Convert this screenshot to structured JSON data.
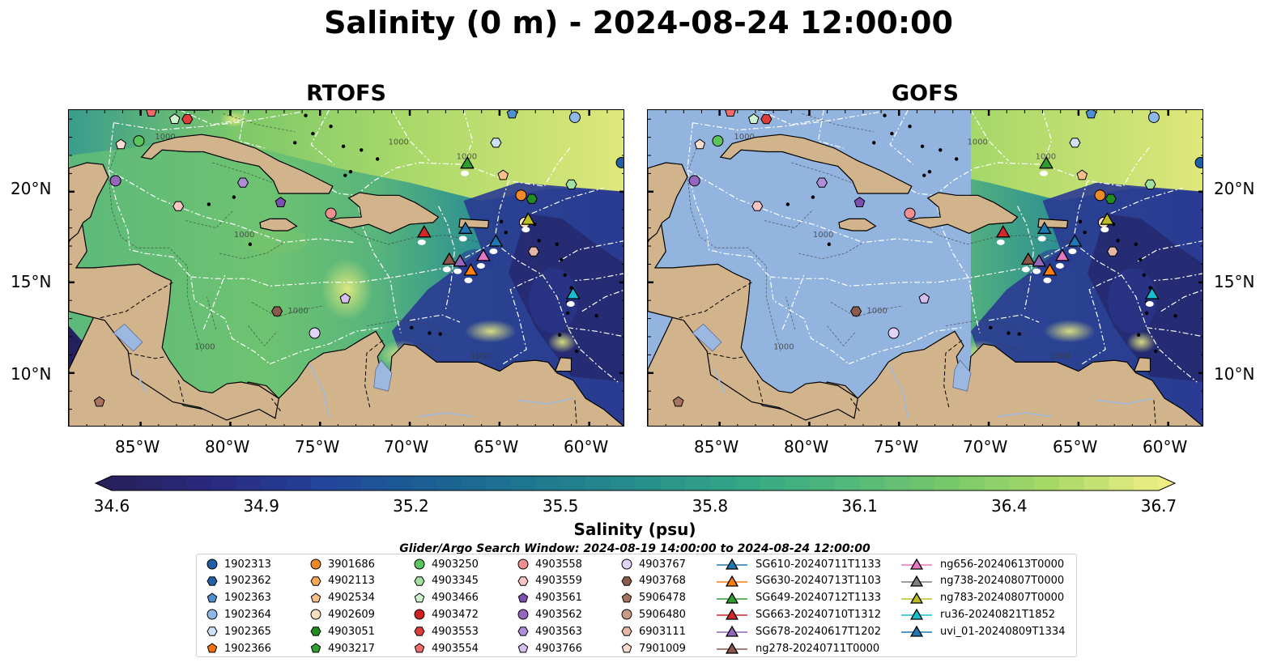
{
  "title": "Salinity (0 m) - 2024-08-24 12:00:00",
  "panels": [
    {
      "id": "rtofs",
      "title": "RTOFS"
    },
    {
      "id": "gofs",
      "title": "GOFS"
    }
  ],
  "axes": {
    "lon_labels": [
      "85°W",
      "80°W",
      "75°W",
      "70°W",
      "65°W",
      "60°W"
    ],
    "lat_labels": [
      "20°N",
      "15°N",
      "10°N"
    ],
    "lon_range": [
      -89,
      -58
    ],
    "lat_range": [
      7,
      24.5
    ]
  },
  "colorbar": {
    "label": "Salinity (psu)",
    "ticks": [
      "34.6",
      "34.9",
      "35.2",
      "35.5",
      "35.8",
      "36.1",
      "36.4",
      "36.7"
    ],
    "vmin": 34.6,
    "vmax": 36.7,
    "extend": "both",
    "colors": [
      "#27205a",
      "#2a2a80",
      "#23449a",
      "#1a5f93",
      "#1e7790",
      "#278d8b",
      "#33a686",
      "#51b87b",
      "#78c86a",
      "#a9d967",
      "#eeed84"
    ]
  },
  "search_window": "Glider/Argo Search Window: 2024-08-19 14:00:00 to 2024-08-24 12:00:00",
  "legend": [
    {
      "label": "1902313",
      "marker": "circle",
      "color": "#1f5fa8"
    },
    {
      "label": "1902362",
      "marker": "hexagon",
      "color": "#1f5fa8"
    },
    {
      "label": "1902363",
      "marker": "pentagon",
      "color": "#4f8fd0"
    },
    {
      "label": "1902364",
      "marker": "circle",
      "color": "#8fb8e8"
    },
    {
      "label": "1902365",
      "marker": "hexagon",
      "color": "#cfe1f5"
    },
    {
      "label": "1902366",
      "marker": "pentagon",
      "color": "#f07010"
    },
    {
      "label": "3901686",
      "marker": "circle",
      "color": "#f08a28"
    },
    {
      "label": "4902113",
      "marker": "hexagon",
      "color": "#f7a65a"
    },
    {
      "label": "4902534",
      "marker": "pentagon",
      "color": "#f7c08a"
    },
    {
      "label": "4902609",
      "marker": "circle",
      "color": "#fbe0c0"
    },
    {
      "label": "4903051",
      "marker": "hexagon",
      "color": "#228b22"
    },
    {
      "label": "4903217",
      "marker": "pentagon",
      "color": "#2ea02e"
    },
    {
      "label": "4903250",
      "marker": "circle",
      "color": "#5cc45c"
    },
    {
      "label": "4903345",
      "marker": "hexagon",
      "color": "#a2e0a2"
    },
    {
      "label": "4903466",
      "marker": "pentagon",
      "color": "#cdf0cd"
    },
    {
      "label": "4903472",
      "marker": "circle",
      "color": "#d02020"
    },
    {
      "label": "4903553",
      "marker": "hexagon",
      "color": "#e03c3c"
    },
    {
      "label": "4903554",
      "marker": "pentagon",
      "color": "#f06a6a"
    },
    {
      "label": "4903558",
      "marker": "circle",
      "color": "#f09090"
    },
    {
      "label": "4903559",
      "marker": "hexagon",
      "color": "#f7c4c4"
    },
    {
      "label": "4903561",
      "marker": "pentagon",
      "color": "#7a4fb0"
    },
    {
      "label": "4903562",
      "marker": "circle",
      "color": "#9467bd"
    },
    {
      "label": "4903563",
      "marker": "hexagon",
      "color": "#ae8ed6"
    },
    {
      "label": "4903766",
      "marker": "pentagon",
      "color": "#d4c0f0"
    },
    {
      "label": "4903767",
      "marker": "circle",
      "color": "#e2d4f7"
    },
    {
      "label": "4903768",
      "marker": "hexagon",
      "color": "#8c5a4a"
    },
    {
      "label": "5906478",
      "marker": "pentagon",
      "color": "#a87462"
    },
    {
      "label": "5906480",
      "marker": "circle",
      "color": "#c79a88"
    },
    {
      "label": "6903111",
      "marker": "hexagon",
      "color": "#e3b8a6"
    },
    {
      "label": "7901009",
      "marker": "pentagon",
      "color": "#f7dccf"
    },
    {
      "label": "SG610-20240711T1133",
      "marker": "triangle",
      "color": "#1f77b4"
    },
    {
      "label": "SG630-20240713T1103",
      "marker": "triangle",
      "color": "#ff7f0e"
    },
    {
      "label": "SG649-20240712T1133",
      "marker": "triangle",
      "color": "#2ca02c"
    },
    {
      "label": "SG663-20240710T1312",
      "marker": "triangle",
      "color": "#d62728"
    },
    {
      "label": "SG678-20240617T1202",
      "marker": "triangle",
      "color": "#9467bd"
    },
    {
      "label": "ng278-20240711T0000",
      "marker": "triangle",
      "color": "#8c564b"
    },
    {
      "label": "ng656-20240613T0000",
      "marker": "triangle",
      "color": "#e377c2"
    },
    {
      "label": "ng738-20240807T0000",
      "marker": "triangle",
      "color": "#7f7f7f"
    },
    {
      "label": "ng783-20240807T0000",
      "marker": "triangle",
      "color": "#bcbd22"
    },
    {
      "label": "ru36-20240821T1852",
      "marker": "triangle",
      "color": "#17becf"
    },
    {
      "label": "uvi_01-20240809T1334",
      "marker": "triangle",
      "color": "#1f77b4"
    }
  ],
  "observations": [
    {
      "lon": -58.2,
      "lat": 21.6,
      "marker": "circle",
      "color": "#1f5fa8"
    },
    {
      "lon": -64.3,
      "lat": 24.3,
      "marker": "pentagon",
      "color": "#4f8fd0"
    },
    {
      "lon": -60.8,
      "lat": 24.1,
      "marker": "circle",
      "color": "#8fb8e8"
    },
    {
      "lon": -65.2,
      "lat": 22.7,
      "marker": "hexagon",
      "color": "#cfe1f5"
    },
    {
      "lon": -64.8,
      "lat": 20.9,
      "marker": "pentagon",
      "color": "#f7c08a"
    },
    {
      "lon": -63.8,
      "lat": 19.8,
      "marker": "circle",
      "color": "#f08a28"
    },
    {
      "lon": -63.2,
      "lat": 19.6,
      "marker": "hexagon",
      "color": "#228b22"
    },
    {
      "lon": -61.0,
      "lat": 20.4,
      "marker": "hexagon",
      "color": "#a2e0a2"
    },
    {
      "lon": -63.6,
      "lat": 18.3,
      "marker": "circle",
      "color": "#fbe0c0"
    },
    {
      "lon": -63.1,
      "lat": 16.7,
      "marker": "hexagon",
      "color": "#e3b8a6"
    },
    {
      "lon": -84.4,
      "lat": 24.4,
      "marker": "pentagon",
      "color": "#f06a6a"
    },
    {
      "lon": -83.1,
      "lat": 24.0,
      "marker": "pentagon",
      "color": "#cdf0cd"
    },
    {
      "lon": -82.4,
      "lat": 24.0,
      "marker": "hexagon",
      "color": "#e03c3c"
    },
    {
      "lon": -86.1,
      "lat": 22.6,
      "marker": "pentagon",
      "color": "#f7dccf"
    },
    {
      "lon": -85.1,
      "lat": 22.8,
      "marker": "circle",
      "color": "#5cc45c"
    },
    {
      "lon": -86.4,
      "lat": 20.6,
      "marker": "circle",
      "color": "#9467bd"
    },
    {
      "lon": -79.3,
      "lat": 20.5,
      "marker": "hexagon",
      "color": "#ae8ed6"
    },
    {
      "lon": -82.9,
      "lat": 19.2,
      "marker": "hexagon",
      "color": "#f7c4c4"
    },
    {
      "lon": -77.2,
      "lat": 19.4,
      "marker": "pentagon",
      "color": "#7a4fb0"
    },
    {
      "lon": -74.4,
      "lat": 18.8,
      "marker": "circle",
      "color": "#f09090"
    },
    {
      "lon": -73.6,
      "lat": 14.1,
      "marker": "pentagon",
      "color": "#d4c0f0"
    },
    {
      "lon": -77.4,
      "lat": 13.4,
      "marker": "hexagon",
      "color": "#8c5a4a"
    },
    {
      "lon": -75.3,
      "lat": 12.2,
      "marker": "circle",
      "color": "#e2d4f7"
    },
    {
      "lon": -87.3,
      "lat": 8.4,
      "marker": "pentagon",
      "color": "#a87462"
    }
  ],
  "gliders": [
    {
      "lon": -66.8,
      "lat": 21.5,
      "color": "#2ca02c"
    },
    {
      "lon": -69.2,
      "lat": 17.7,
      "color": "#d62728"
    },
    {
      "lon": -66.9,
      "lat": 17.9,
      "color": "#1f77b4"
    },
    {
      "lon": -65.2,
      "lat": 17.2,
      "color": "#1f77b4"
    },
    {
      "lon": -67.8,
      "lat": 16.2,
      "color": "#8c564b"
    },
    {
      "lon": -67.2,
      "lat": 16.1,
      "color": "#9467bd"
    },
    {
      "lon": -66.6,
      "lat": 15.6,
      "color": "#ff7f0e"
    },
    {
      "lon": -65.9,
      "lat": 16.4,
      "color": "#e377c2"
    },
    {
      "lon": -63.4,
      "lat": 18.4,
      "color": "#bcbd22"
    },
    {
      "lon": -60.9,
      "lat": 14.3,
      "color": "#17becf"
    }
  ]
}
